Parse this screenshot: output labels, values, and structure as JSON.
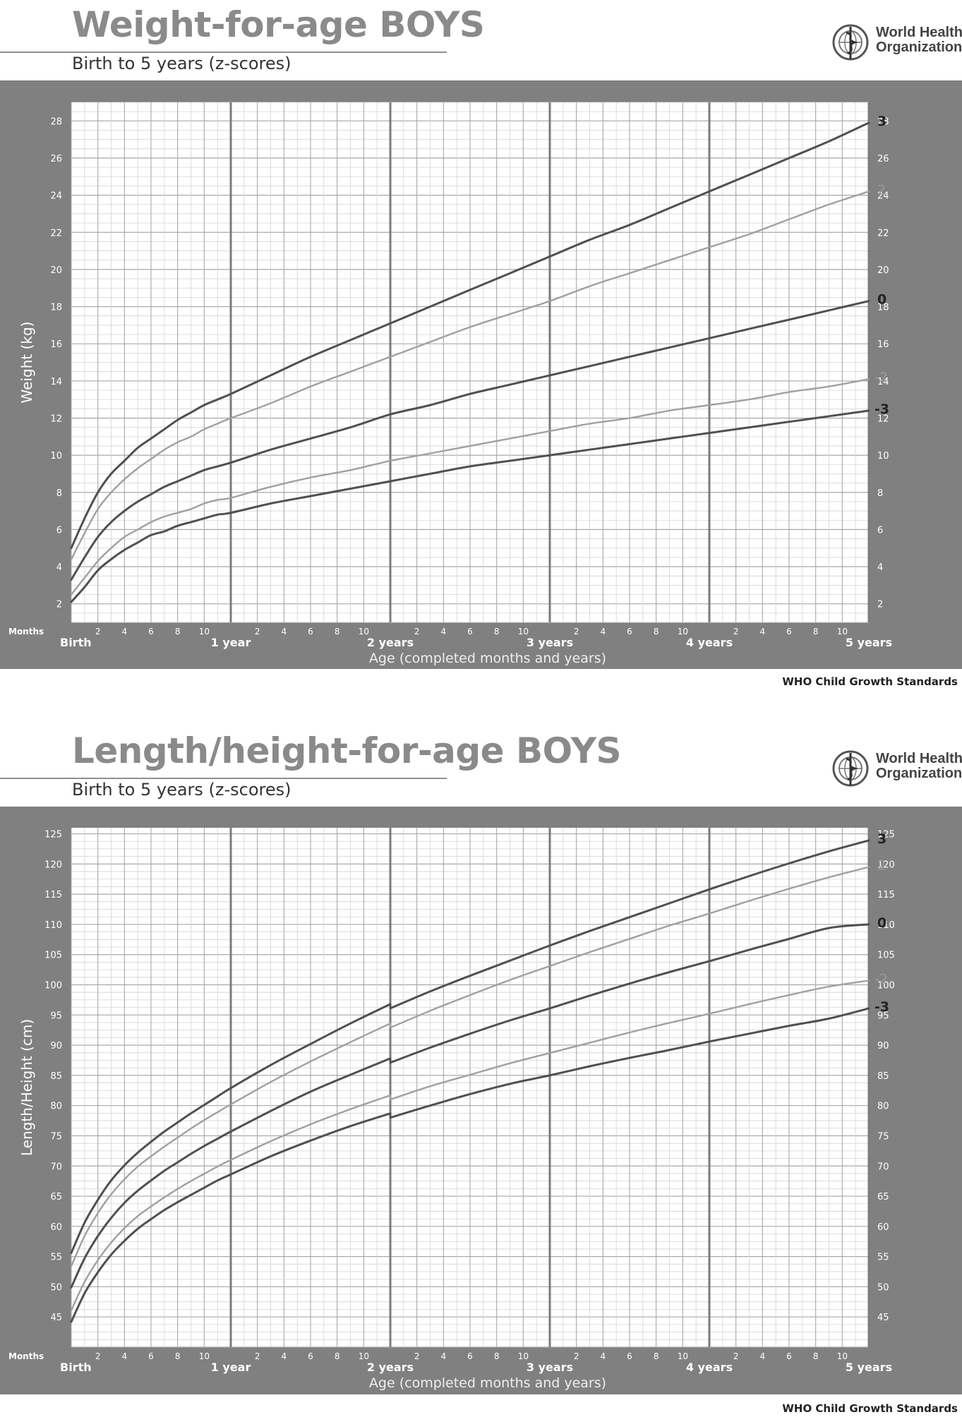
{
  "source_label": "WHO Child Growth Standards",
  "logo": {
    "line1": "World Health",
    "line2": "Organization",
    "icon": "who-emblem-icon"
  },
  "colors": {
    "panel": "#808080",
    "plot_bg": "#ffffff",
    "grid_minor": "#d4d4d4",
    "grid_major": "#a8a8a8",
    "year_line": "#7b7b7b",
    "axis_text": "#ffffff",
    "curve_dark": "#505050",
    "curve_light": "#a0a0a0",
    "label_dark": "#222222",
    "label_light": "#9a9a9a"
  },
  "chart_data": [
    {
      "type": "line",
      "title": "Weight-for-age BOYS",
      "subtitle": "Birth to 5 years (z-scores)",
      "xlabel": "Age (completed months and years)",
      "ylabel": "Weight (kg)",
      "xlim": [
        0,
        60
      ],
      "ylim": [
        1,
        29
      ],
      "yticks": [
        2,
        4,
        6,
        8,
        10,
        12,
        14,
        16,
        18,
        20,
        22,
        24,
        26,
        28
      ],
      "months_label": "Months",
      "month_ticks": [
        "2",
        "4",
        "6",
        "8",
        "10"
      ],
      "year_labels": [
        "Birth",
        "1 year",
        "2 years",
        "3 years",
        "4 years",
        "5 years"
      ],
      "x": [
        0,
        1,
        2,
        3,
        4,
        5,
        6,
        7,
        8,
        9,
        10,
        11,
        12,
        15,
        18,
        21,
        24,
        27,
        30,
        33,
        36,
        39,
        42,
        45,
        48,
        51,
        54,
        57,
        60
      ],
      "series": [
        {
          "name": "3",
          "values": [
            5.0,
            6.6,
            8.0,
            9.0,
            9.7,
            10.4,
            10.9,
            11.4,
            11.9,
            12.3,
            12.7,
            13.0,
            13.3,
            14.3,
            15.3,
            16.2,
            17.1,
            18.0,
            18.9,
            19.8,
            20.7,
            21.6,
            22.4,
            23.3,
            24.2,
            25.1,
            26.0,
            26.9,
            27.9
          ],
          "style": "dark"
        },
        {
          "name": "2",
          "values": [
            4.4,
            5.8,
            7.1,
            8.0,
            8.7,
            9.3,
            9.8,
            10.3,
            10.7,
            11.0,
            11.4,
            11.7,
            12.0,
            12.8,
            13.7,
            14.5,
            15.3,
            16.1,
            16.9,
            17.6,
            18.3,
            19.1,
            19.8,
            20.5,
            21.2,
            21.9,
            22.7,
            23.5,
            24.2
          ],
          "style": "light"
        },
        {
          "name": "0",
          "values": [
            3.3,
            4.5,
            5.6,
            6.4,
            7.0,
            7.5,
            7.9,
            8.3,
            8.6,
            8.9,
            9.2,
            9.4,
            9.6,
            10.3,
            10.9,
            11.5,
            12.2,
            12.7,
            13.3,
            13.8,
            14.3,
            14.8,
            15.3,
            15.8,
            16.3,
            16.8,
            17.3,
            17.8,
            18.3
          ],
          "style": "dark"
        },
        {
          "name": "-2",
          "values": [
            2.5,
            3.4,
            4.3,
            5.0,
            5.6,
            6.0,
            6.4,
            6.7,
            6.9,
            7.1,
            7.4,
            7.6,
            7.7,
            8.3,
            8.8,
            9.2,
            9.7,
            10.1,
            10.5,
            10.9,
            11.3,
            11.7,
            12.0,
            12.4,
            12.7,
            13.0,
            13.4,
            13.7,
            14.1
          ],
          "style": "light"
        },
        {
          "name": "-3",
          "values": [
            2.1,
            2.9,
            3.8,
            4.4,
            4.9,
            5.3,
            5.7,
            5.9,
            6.2,
            6.4,
            6.6,
            6.8,
            6.9,
            7.4,
            7.8,
            8.2,
            8.6,
            9.0,
            9.4,
            9.7,
            10.0,
            10.3,
            10.6,
            10.9,
            11.2,
            11.5,
            11.8,
            12.1,
            12.4
          ],
          "style": "dark"
        }
      ]
    },
    {
      "type": "line",
      "title": "Length/height-for-age BOYS",
      "subtitle": "Birth to 5 years (z-scores)",
      "xlabel": "Age (completed months and years)",
      "ylabel": "Length/Height (cm)",
      "xlim": [
        0,
        60
      ],
      "ylim": [
        40,
        126
      ],
      "yticks": [
        45,
        50,
        55,
        60,
        65,
        70,
        75,
        80,
        85,
        90,
        95,
        100,
        105,
        110,
        115,
        120,
        125
      ],
      "months_label": "Months",
      "month_ticks": [
        "2",
        "4",
        "6",
        "8",
        "10"
      ],
      "year_labels": [
        "Birth",
        "1 year",
        "2 years",
        "3 years",
        "4 years",
        "5 years"
      ],
      "x": [
        0,
        1,
        2,
        3,
        4,
        5,
        6,
        7,
        8,
        9,
        10,
        11,
        12,
        15,
        18,
        21,
        24,
        24,
        27,
        30,
        33,
        36,
        39,
        42,
        45,
        48,
        51,
        54,
        57,
        60
      ],
      "series": [
        {
          "name": "3",
          "values": [
            55.6,
            60.6,
            64.4,
            67.6,
            70.1,
            72.2,
            74.0,
            75.7,
            77.2,
            78.7,
            80.1,
            81.5,
            82.9,
            86.7,
            90.2,
            93.6,
            96.8,
            96.1,
            98.9,
            101.5,
            104.0,
            106.5,
            108.9,
            111.2,
            113.5,
            115.8,
            118.0,
            120.1,
            122.1,
            123.9
          ],
          "style": "dark"
        },
        {
          "name": "2",
          "values": [
            53.4,
            58.4,
            62.2,
            65.3,
            67.8,
            69.9,
            71.6,
            73.2,
            74.7,
            76.2,
            77.6,
            78.9,
            80.2,
            83.9,
            87.3,
            90.5,
            93.6,
            92.9,
            95.7,
            98.3,
            100.8,
            103.1,
            105.4,
            107.6,
            109.8,
            111.8,
            113.9,
            115.9,
            117.8,
            119.5
          ],
          "style": "light"
        },
        {
          "name": "0",
          "values": [
            49.9,
            54.7,
            58.4,
            61.4,
            63.9,
            65.9,
            67.6,
            69.2,
            70.6,
            72.0,
            73.3,
            74.5,
            75.7,
            79.1,
            82.3,
            85.1,
            87.8,
            87.1,
            89.6,
            91.9,
            94.1,
            96.1,
            98.2,
            100.2,
            102.1,
            103.9,
            105.8,
            107.6,
            109.4,
            110.0
          ],
          "style": "dark"
        },
        {
          "name": "-2",
          "values": [
            46.1,
            50.8,
            54.4,
            57.3,
            59.7,
            61.7,
            63.3,
            64.8,
            66.2,
            67.5,
            68.7,
            69.9,
            71.0,
            74.1,
            76.9,
            79.4,
            81.7,
            81.0,
            83.2,
            85.1,
            87.0,
            88.7,
            90.4,
            92.1,
            93.7,
            95.2,
            96.8,
            98.3,
            99.7,
            100.7
          ],
          "style": "light"
        },
        {
          "name": "-3",
          "values": [
            44.2,
            48.9,
            52.4,
            55.3,
            57.6,
            59.6,
            61.2,
            62.7,
            64.0,
            65.2,
            66.4,
            67.6,
            68.6,
            71.6,
            74.2,
            76.6,
            78.7,
            78.0,
            80.0,
            81.9,
            83.6,
            85.0,
            86.5,
            87.9,
            89.2,
            90.6,
            91.9,
            93.2,
            94.4,
            96.1
          ],
          "style": "dark"
        }
      ]
    }
  ]
}
